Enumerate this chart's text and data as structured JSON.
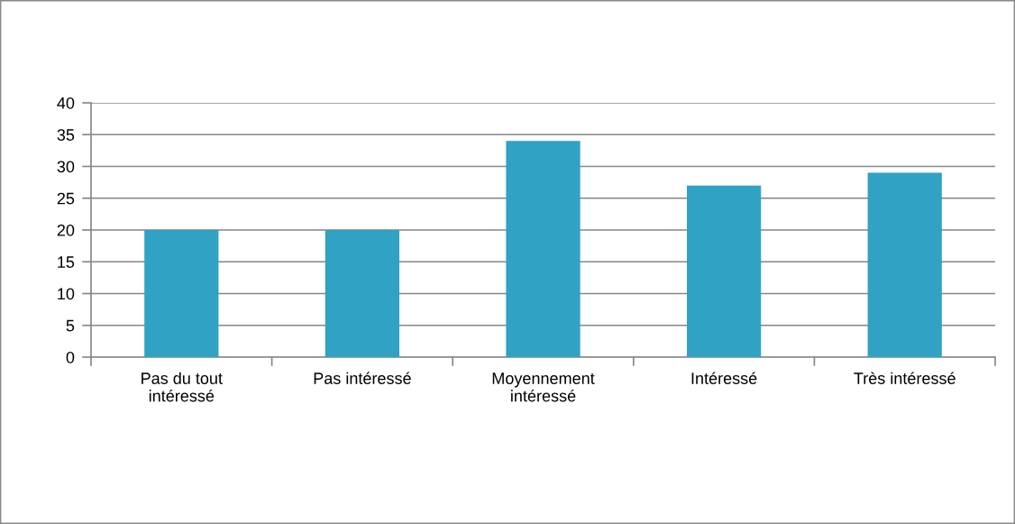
{
  "chart_data": {
    "type": "bar",
    "categories": [
      "Pas du tout\nintéressé",
      "Pas intéressé",
      "Moyennement\nintéressé",
      "Intéressé",
      "Très intéressé"
    ],
    "values": [
      20,
      20,
      34,
      27,
      29
    ],
    "color": "#30a2c4",
    "ylim": [
      0,
      40
    ],
    "yticks": [
      0,
      5,
      10,
      15,
      20,
      25,
      30,
      35,
      40
    ],
    "grid": "y"
  }
}
